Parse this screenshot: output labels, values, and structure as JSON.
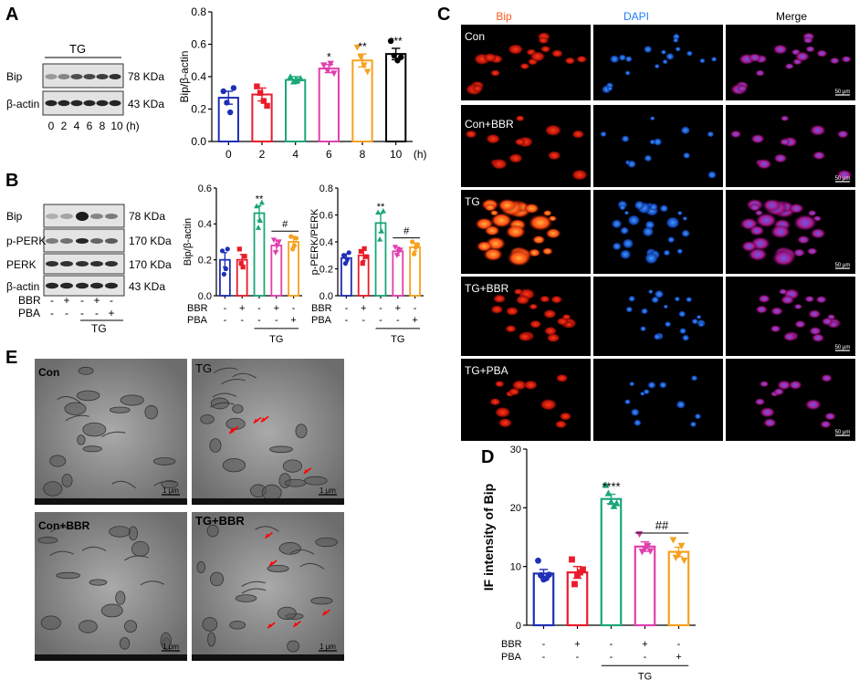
{
  "panel_labels": {
    "A": "A",
    "B": "B",
    "C": "C",
    "D": "D",
    "E": "E"
  },
  "blot_a": {
    "group": "TG",
    "rows": [
      {
        "protein": "Bip",
        "size": "78 KDa"
      },
      {
        "protein": "β-actin",
        "size": "43 KDa"
      }
    ],
    "lanes": [
      "0",
      "2",
      "4",
      "6",
      "8",
      "10"
    ],
    "unit": "(h)"
  },
  "blot_b": {
    "rows": [
      {
        "protein": "Bip",
        "size": "78 KDa"
      },
      {
        "protein": "p-PERK",
        "size": "170 KDa"
      },
      {
        "protein": "PERK",
        "size": "170 KDa"
      },
      {
        "protein": "β-actin",
        "size": "43 KDa"
      }
    ],
    "treatments": [
      {
        "name": "BBR",
        "signs": [
          "-",
          "+",
          "-",
          "+",
          "-"
        ]
      },
      {
        "name": "PBA",
        "signs": [
          "-",
          "-",
          "-",
          "-",
          "+"
        ]
      }
    ],
    "group": "TG"
  },
  "if_panel": {
    "columns": [
      {
        "name": "Bip",
        "color": "#ff5a1f"
      },
      {
        "name": "DAPI",
        "color": "#1f7fff"
      },
      {
        "name": "Merge",
        "color": "#000000"
      }
    ],
    "rows": [
      "Con",
      "Con+BBR",
      "TG",
      "TG+BBR",
      "TG+PBA"
    ],
    "scale_bar": "50 μm"
  },
  "em_panel": {
    "images": [
      {
        "label": "Con",
        "scale": "1 μm"
      },
      {
        "label": "TG",
        "scale": "1 μm"
      },
      {
        "label": "Con+BBR",
        "scale": "1 μm"
      },
      {
        "label": "TG+BBR",
        "scale": "1 μm"
      }
    ]
  },
  "chart_data": [
    {
      "id": "A",
      "type": "bar",
      "categories": [
        "0",
        "2",
        "4",
        "6",
        "8",
        "10"
      ],
      "x_unit": "(h)",
      "values": [
        0.27,
        0.29,
        0.38,
        0.45,
        0.5,
        0.54
      ],
      "errors": [
        0.04,
        0.04,
        0.02,
        0.025,
        0.04,
        0.035
      ],
      "points": [
        [
          0.31,
          0.24,
          0.18,
          0.33
        ],
        [
          0.34,
          0.3,
          0.25,
          0.22
        ],
        [
          0.4,
          0.37,
          0.38,
          0.39
        ],
        [
          0.47,
          0.44,
          0.48,
          0.42
        ],
        [
          0.58,
          0.52,
          0.47,
          0.43
        ],
        [
          0.62,
          0.53,
          0.5,
          0.52
        ]
      ],
      "colors": [
        "#1f2fb5",
        "#ea1c2a",
        "#1aa67a",
        "#e03fae",
        "#f6a11f",
        "#000000"
      ],
      "sig": [
        "",
        "",
        "",
        "*",
        "**",
        "***"
      ],
      "ylabel": "Bip/β-actin",
      "ylim": [
        0,
        0.8
      ],
      "yticks": [
        "0.0",
        "0.2",
        "0.4",
        "0.6",
        "0.8"
      ]
    },
    {
      "id": "B1",
      "type": "bar",
      "categories": [
        "Con",
        "BBR",
        "TG",
        "TG+BBR",
        "TG+PBA"
      ],
      "values": [
        0.2,
        0.2,
        0.46,
        0.28,
        0.3
      ],
      "errors": [
        0.04,
        0.03,
        0.04,
        0.03,
        0.03
      ],
      "points": [
        [
          0.25,
          0.12,
          0.15,
          0.26
        ],
        [
          0.26,
          0.18,
          0.16,
          0.22
        ],
        [
          0.5,
          0.38,
          0.42,
          0.52
        ],
        [
          0.31,
          0.24,
          0.28,
          0.3
        ],
        [
          0.33,
          0.26,
          0.28,
          0.32
        ]
      ],
      "colors": [
        "#1f2fb5",
        "#ea1c2a",
        "#1aa67a",
        "#e03fae",
        "#f6a11f"
      ],
      "sig": [
        "",
        "",
        "**",
        "",
        ""
      ],
      "hash": "#",
      "ylabel": "Bip/β-actin",
      "ylim": [
        0,
        0.6
      ],
      "yticks": [
        "0.0",
        "0.2",
        "0.4",
        "0.6"
      ],
      "treatments": [
        {
          "name": "BBR",
          "signs": [
            "-",
            "+",
            "-",
            "+",
            "-"
          ]
        },
        {
          "name": "PBA",
          "signs": [
            "-",
            "-",
            "-",
            "-",
            "+"
          ]
        }
      ],
      "group": "TG"
    },
    {
      "id": "B2",
      "type": "bar",
      "categories": [
        "Con",
        "BBR",
        "TG",
        "TG+BBR",
        "TG+PBA"
      ],
      "values": [
        0.28,
        0.3,
        0.54,
        0.33,
        0.36
      ],
      "errors": [
        0.03,
        0.04,
        0.07,
        0.03,
        0.03
      ],
      "points": [
        [
          0.3,
          0.24,
          0.27,
          0.32
        ],
        [
          0.33,
          0.24,
          0.35,
          0.29
        ],
        [
          0.62,
          0.42,
          0.48,
          0.63
        ],
        [
          0.36,
          0.3,
          0.33,
          0.34
        ],
        [
          0.4,
          0.31,
          0.36,
          0.38
        ]
      ],
      "colors": [
        "#1f2fb5",
        "#ea1c2a",
        "#1aa67a",
        "#e03fae",
        "#f6a11f"
      ],
      "sig": [
        "",
        "",
        "**",
        "",
        ""
      ],
      "hash": "#",
      "ylabel": "p-PERK/PERK",
      "ylim": [
        0,
        0.8
      ],
      "yticks": [
        "0.0",
        "0.2",
        "0.4",
        "0.6",
        "0.8"
      ],
      "treatments": [
        {
          "name": "BBR",
          "signs": [
            "-",
            "+",
            "-",
            "+",
            "-"
          ]
        },
        {
          "name": "PBA",
          "signs": [
            "-",
            "-",
            "-",
            "-",
            "+"
          ]
        }
      ],
      "group": "TG"
    },
    {
      "id": "D",
      "type": "bar",
      "categories": [
        "Con",
        "BBR",
        "TG",
        "TG+BBR",
        "TG+PBA"
      ],
      "values": [
        8.8,
        9.0,
        21.5,
        13.4,
        12.5
      ],
      "errors": [
        0.7,
        1.0,
        0.8,
        0.8,
        0.8
      ],
      "points": [
        [
          11.0,
          8.5,
          7.8,
          8.0,
          8.6
        ],
        [
          11.2,
          7.0,
          8.5,
          9.0,
          9.5
        ],
        [
          23.9,
          22.5,
          21.0,
          20.3,
          20.8
        ],
        [
          15.5,
          12.5,
          13.0,
          13.5,
          12.6
        ],
        [
          14.5,
          11.5,
          12.0,
          13.5,
          11.0
        ]
      ],
      "colors": [
        "#1f2fb5",
        "#ea1c2a",
        "#1aa67a",
        "#e03fae",
        "#f6a11f"
      ],
      "sig": [
        "",
        "",
        "****",
        "",
        ""
      ],
      "hash": "##",
      "ylabel": "IF intensity of Bip",
      "ylim": [
        0,
        30
      ],
      "yticks": [
        "0",
        "10",
        "20",
        "30"
      ],
      "treatments": [
        {
          "name": "BBR",
          "signs": [
            "-",
            "+",
            "-",
            "+",
            "-"
          ]
        },
        {
          "name": "PBA",
          "signs": [
            "-",
            "-",
            "-",
            "-",
            "+"
          ]
        }
      ],
      "group": "TG"
    }
  ]
}
